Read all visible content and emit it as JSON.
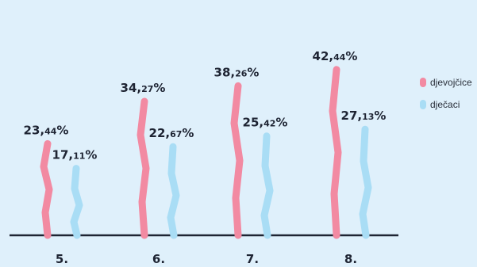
{
  "chart_data": {
    "type": "bar",
    "categories": [
      "5.",
      "6.",
      "7.",
      "8."
    ],
    "series": [
      {
        "name": "djevojčice",
        "values": [
          23.44,
          34.27,
          38.26,
          42.44
        ],
        "labels": [
          "23,44%",
          "34,27%",
          "38,26%",
          "42,44%"
        ],
        "color": "#f28aa2"
      },
      {
        "name": "dječaci",
        "values": [
          17.11,
          22.67,
          25.42,
          27.13
        ],
        "labels": [
          "17,11%",
          "22,67%",
          "25,42%",
          "27,13%"
        ],
        "color": "#a9ddf5"
      }
    ],
    "ylim": [
      0,
      50
    ],
    "grid": false,
    "legend": "right"
  },
  "colors": {
    "background": "#dff0fb",
    "axis": "#1e2433"
  }
}
